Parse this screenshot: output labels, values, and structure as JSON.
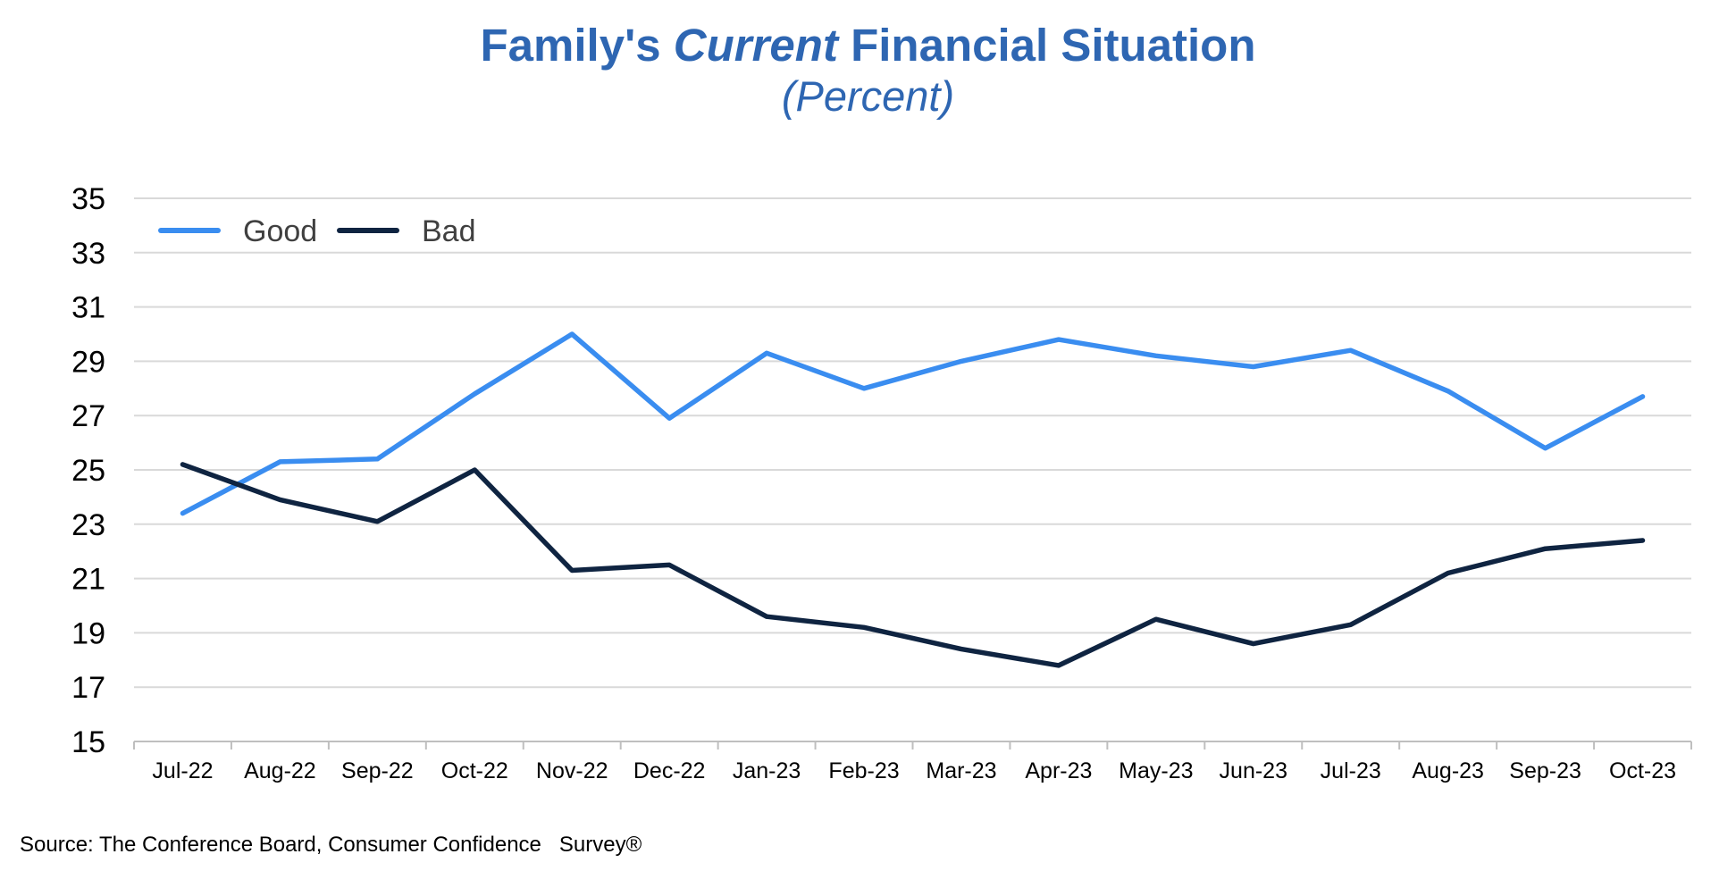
{
  "chart_data": {
    "type": "line",
    "title_pre": "Family's ",
    "title_em": "Current",
    "title_post": " Financial Situation",
    "subtitle": "(Percent)",
    "categories": [
      "Jul-22",
      "Aug-22",
      "Sep-22",
      "Oct-22",
      "Nov-22",
      "Dec-22",
      "Jan-23",
      "Feb-23",
      "Mar-23",
      "Apr-23",
      "May-23",
      "Jun-23",
      "Jul-23",
      "Aug-23",
      "Sep-23",
      "Oct-23"
    ],
    "series": [
      {
        "name": "Good",
        "color": "#3A8DF0",
        "values": [
          23.4,
          25.3,
          25.4,
          27.8,
          30.0,
          26.9,
          29.3,
          28.0,
          29.0,
          29.8,
          29.2,
          28.8,
          29.4,
          27.9,
          25.8,
          27.7
        ]
      },
      {
        "name": "Bad",
        "color": "#0F2441",
        "values": [
          25.2,
          23.9,
          23.1,
          25.0,
          21.3,
          21.5,
          19.6,
          19.2,
          18.4,
          17.8,
          19.5,
          18.6,
          19.3,
          21.2,
          22.1,
          22.4
        ]
      }
    ],
    "ylim": [
      15,
      35
    ],
    "yticks": [
      15,
      17,
      19,
      21,
      23,
      25,
      27,
      29,
      31,
      33,
      35
    ],
    "grid": true,
    "legend_position": "top-left"
  },
  "source": "Source: The Conference Board, Consumer Confidence   Survey®"
}
